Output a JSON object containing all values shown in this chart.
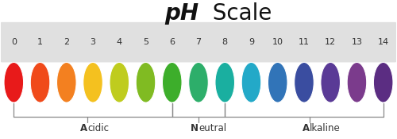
{
  "title_ph": "pH",
  "title_rest": "  Scale",
  "ph_values": [
    "0",
    "1",
    "2",
    "3",
    "4",
    "5",
    "6",
    "7",
    "8",
    "9",
    "10",
    "11",
    "12",
    "13",
    "14"
  ],
  "circle_colors": [
    "#E81A1A",
    "#F04A1A",
    "#F38020",
    "#F4C11F",
    "#BFCC1E",
    "#80BB22",
    "#3DAE2B",
    "#2DAE6A",
    "#1AAFA0",
    "#23A9C8",
    "#3174B8",
    "#3A4DA0",
    "#5A3A96",
    "#7B3B8C",
    "#5B2D82"
  ],
  "label_acidic_bold": "A",
  "label_acidic_rest": "cidic",
  "label_neutral_bold": "N",
  "label_neutral_rest": "eutral",
  "label_alkaline_bold": "A",
  "label_alkaline_rest": "lkaline",
  "bg_color": "#ffffff",
  "box_color": "#e0e0e0",
  "bracket_color": "#888888",
  "text_color": "#333333"
}
